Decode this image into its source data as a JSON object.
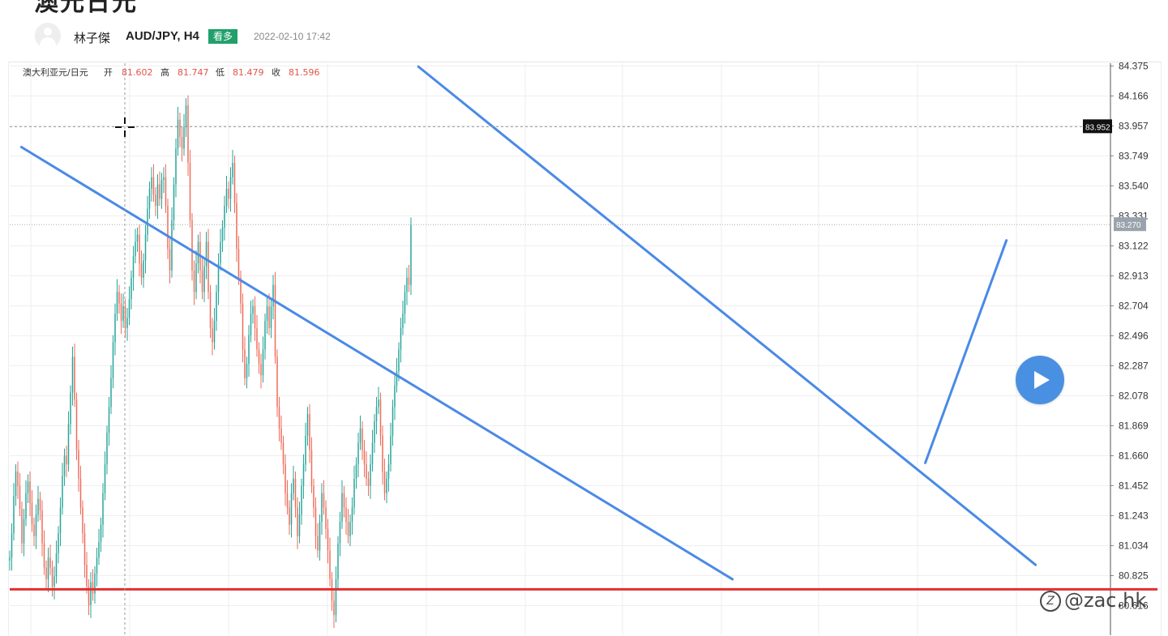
{
  "page": {
    "title_fragment": "澳元日元",
    "author": "林子傑",
    "symbol": "AUD/JPY, H4",
    "badge": "看多",
    "date": "2022-02-10 17:42",
    "watermark_icon": "zc-logo-icon",
    "watermark": "@zac.hk",
    "colors": {
      "badge": "#22a06b",
      "trendline": "#4a8ae6",
      "support": "#e03030",
      "up_candle": "#26a69a",
      "down_candle": "#ef6c5a",
      "play_button": "#4a90e2"
    }
  },
  "ohlc_legend": {
    "instrument": "澳大利亚元/日元",
    "open_label": "开",
    "open": "81.602",
    "high_label": "高",
    "high": "81.747",
    "low_label": "低",
    "low": "81.479",
    "close_label": "收",
    "close": "81.596"
  },
  "chart_data": {
    "type": "candlestick",
    "y_ticks": [
      "84.375",
      "84.166",
      "83.957",
      "83.749",
      "83.540",
      "83.331",
      "83.122",
      "82.913",
      "82.704",
      "82.496",
      "82.287",
      "82.078",
      "81.869",
      "81.660",
      "81.452",
      "81.243",
      "81.034",
      "80.825",
      "80.616"
    ],
    "ylim": [
      80.5,
      84.43
    ],
    "crosshair_price": "83.952",
    "last_price": "83.270",
    "support_level": 80.73,
    "candles_c": [
      80.95,
      81.12,
      81.38,
      81.55,
      81.45,
      81.29,
      81.05,
      81.22,
      81.4,
      81.48,
      81.33,
      81.18,
      81.1,
      81.25,
      81.36,
      81.28,
      81.05,
      80.88,
      80.8,
      80.95,
      80.88,
      80.75,
      80.82,
      80.98,
      81.12,
      81.3,
      81.52,
      81.66,
      81.6,
      81.88,
      82.1,
      82.35,
      82.05,
      81.7,
      81.5,
      81.3,
      81.12,
      80.9,
      80.75,
      80.62,
      80.78,
      80.7,
      80.84,
      80.95,
      81.06,
      81.18,
      81.4,
      81.6,
      81.82,
      82.0,
      82.2,
      82.45,
      82.65,
      82.8,
      82.72,
      82.6,
      82.7,
      82.55,
      82.62,
      82.75,
      82.9,
      83.05,
      83.15,
      83.2,
      83.0,
      82.9,
      83.02,
      83.2,
      83.38,
      83.52,
      83.6,
      83.48,
      83.4,
      83.55,
      83.45,
      83.58,
      83.6,
      83.4,
      83.1,
      82.95,
      83.3,
      83.55,
      83.8,
      84.0,
      83.88,
      83.8,
      83.95,
      84.1,
      83.7,
      83.3,
      82.95,
      82.8,
      83.0,
      83.15,
      82.95,
      82.8,
      82.98,
      83.15,
      82.8,
      82.55,
      82.45,
      82.6,
      82.8,
      83.0,
      83.15,
      83.25,
      83.4,
      83.52,
      83.45,
      83.6,
      83.7,
      83.42,
      83.1,
      82.9,
      82.72,
      82.4,
      82.2,
      82.3,
      82.5,
      82.65,
      82.7,
      82.55,
      82.4,
      82.3,
      82.22,
      82.4,
      82.6,
      82.7,
      82.55,
      82.7,
      82.85,
      82.35,
      82.0,
      81.85,
      81.75,
      81.6,
      81.4,
      81.3,
      81.18,
      81.4,
      81.5,
      81.3,
      81.1,
      81.25,
      81.45,
      81.6,
      81.8,
      81.95,
      81.7,
      81.45,
      81.3,
      81.1,
      81.0,
      81.2,
      81.4,
      81.3,
      81.15,
      81.0,
      80.8,
      80.65,
      80.55,
      80.8,
      81.05,
      81.2,
      81.4,
      81.3,
      81.2,
      81.1,
      81.2,
      81.3,
      81.5,
      81.6,
      81.75,
      81.85,
      81.7,
      81.6,
      81.5,
      81.45,
      81.6,
      81.75,
      81.9,
      82.0,
      82.05,
      81.8,
      81.55,
      81.4,
      81.5,
      81.6,
      81.8,
      82.0,
      82.15,
      82.25,
      82.4,
      82.55,
      82.65,
      82.8,
      82.9,
      82.85,
      83.27
    ],
    "candle_range_start": 80.93,
    "trendlines": [
      {
        "p1": [
          5.74,
          83.81
        ],
        "p2": [
          356.67,
          80.8
        ]
      },
      {
        "p1": [
          201.67,
          84.37
        ],
        "p2": [
          506.26,
          80.9
        ]
      },
      {
        "p1": [
          451.81,
          81.61
        ],
        "p2": [
          491.86,
          83.16
        ]
      }
    ]
  }
}
